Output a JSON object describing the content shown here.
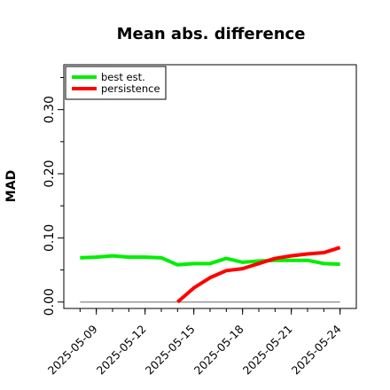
{
  "chart_data": {
    "type": "line",
    "title": "Mean abs. difference",
    "xlabel": "",
    "ylabel": "MAD",
    "ylim": [
      -0.01,
      0.37
    ],
    "xlim": [
      "2025-05-07",
      "2025-05-25"
    ],
    "yticks": [
      "0.00",
      "0.10",
      "0.20",
      "0.30"
    ],
    "y_minor_ticks": [
      0.05,
      0.15,
      0.25,
      0.35
    ],
    "xticks": [
      "2025-05-09",
      "2025-05-12",
      "2025-05-15",
      "2025-05-18",
      "2025-05-21",
      "2025-05-24"
    ],
    "legend_position": "top-left",
    "grid": false,
    "reference_line": {
      "y": 0,
      "from": "2025-05-08",
      "to": "2025-05-24",
      "color": "#999999"
    },
    "x": [
      "2025-05-08",
      "2025-05-09",
      "2025-05-10",
      "2025-05-11",
      "2025-05-12",
      "2025-05-13",
      "2025-05-14",
      "2025-05-15",
      "2025-05-16",
      "2025-05-17",
      "2025-05-18",
      "2025-05-19",
      "2025-05-20",
      "2025-05-21",
      "2025-05-22",
      "2025-05-23",
      "2025-05-24"
    ],
    "series": [
      {
        "name": "best est.",
        "color": "#00ee00",
        "values": [
          0.069,
          0.07,
          0.072,
          0.07,
          0.07,
          0.069,
          0.058,
          0.06,
          0.06,
          0.068,
          0.062,
          0.064,
          0.065,
          0.065,
          0.065,
          0.06,
          0.059
        ]
      },
      {
        "name": "persistence",
        "color": "#ff0000",
        "values": [
          null,
          null,
          null,
          null,
          null,
          null,
          0.0,
          0.022,
          0.038,
          0.049,
          0.052,
          0.06,
          0.068,
          0.072,
          0.075,
          0.077,
          0.085
        ]
      }
    ]
  }
}
